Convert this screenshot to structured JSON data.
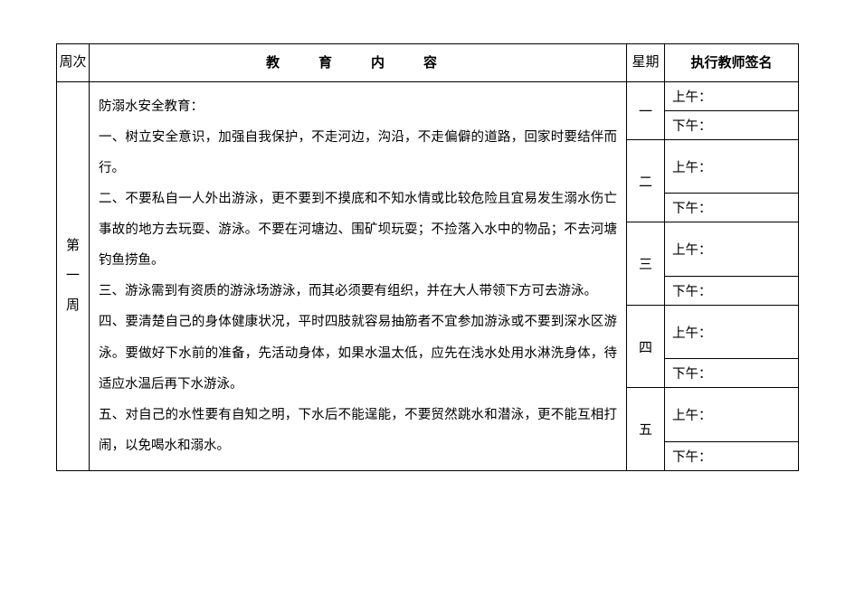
{
  "header": {
    "week_col": "周次",
    "content_col": "教　育　内　容",
    "day_col": "星期",
    "sign_col": "执行教师签名"
  },
  "week_label": "第一周",
  "content_lines": {
    "l0": "防溺水安全教育：",
    "l1": "一、树立安全意识，加强自我保护，不走河边，沟沿，不走偏僻的道路，回家时要结伴而行。",
    "l2": "二、不要私自一人外出游泳，更不要到不摸底和不知水情或比较危险且宜易发生溺水伤亡事故的地方去玩耍、游泳。不要在河塘边、围矿坝玩耍；不捡落入水中的物品；不去河塘钓鱼捞鱼。",
    "l3": "三、游泳需到有资质的游泳场游泳，而其必须要有组织，并在大人带领下方可去游泳。",
    "l4": "四、要清楚自己的身体健康状况，平时四肢就容易抽筋者不宜参加游泳或不要到深水区游泳。要做好下水前的准备，先活动身体，如果水温太低，应先在浅水处用水淋洗身体，待适应水温后再下水游泳。",
    "l5": "五、对自己的水性要有自知之明，下水后不能逞能，不要贸然跳水和潜泳，更不能互相打闹，以免喝水和溺水。"
  },
  "days": {
    "d1": "一",
    "d2": "二",
    "d3": "三",
    "d4": "四",
    "d5": "五"
  },
  "sign": {
    "am": "上午：",
    "pm": "下午："
  },
  "colors": {
    "border": "#000000",
    "background": "#ffffff",
    "text": "#000000"
  },
  "typography": {
    "font_family": "SimSun",
    "body_fontsize": 14.5,
    "header_fontsize": 15,
    "line_height": 2.35
  }
}
